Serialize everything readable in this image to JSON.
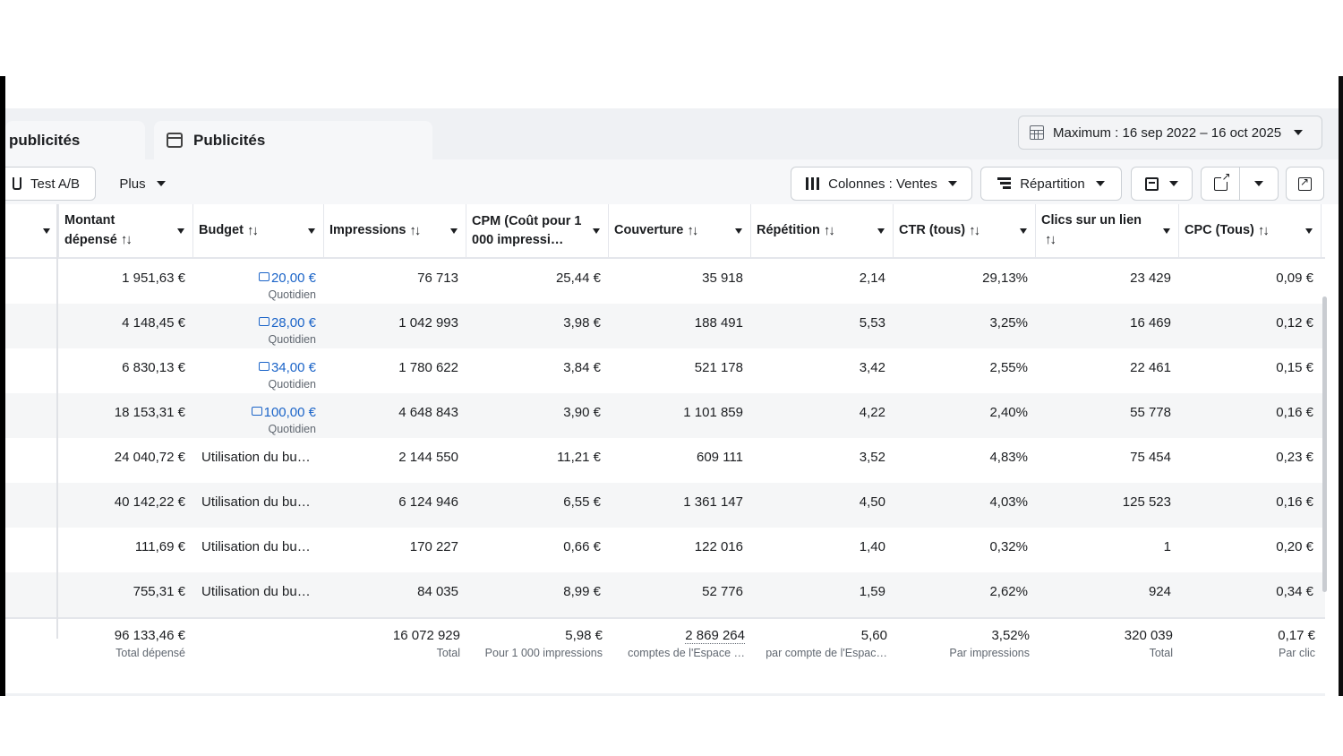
{
  "tabs": {
    "ad_sets_label": "publicités",
    "ads_label": "Publicités"
  },
  "date_range": {
    "label": "Maximum : 16 sep 2022 – 16 oct 2025"
  },
  "toolbar": {
    "ab_test_label": "Test A/B",
    "more_label": "Plus",
    "columns_label": "Colonnes : Ventes",
    "breakdown_label": "Répartition"
  },
  "icons": {
    "tab_ads": "ad-frame-icon",
    "date": "calendar-grid-icon",
    "ab_test": "flask-icon",
    "columns": "columns-icon",
    "breakdown": "breakdown-icon",
    "reports": "reports-icon",
    "export": "export-icon",
    "chart": "chart-icon",
    "budget": "budget-edit-icon"
  },
  "colors": {
    "link": "#1b64c8",
    "alt_row": "#f5f6f7",
    "band": "#eff1f4"
  },
  "headers": {
    "spent": "Montant dépensé",
    "budget": "Budget",
    "impressions": "Impressions",
    "cpm": "CPM (Coût pour 1 000 impressi…",
    "reach": "Couverture",
    "frequency": "Répétition",
    "ctr": "CTR (tous)",
    "link_clicks": "Clics sur un lien",
    "cpc": "CPC (Tous)",
    "sort_glyph": "↑↓"
  },
  "rows": [
    {
      "spent": "1 951,63 €",
      "budget": "20,00 €",
      "budget_sub": "Quotidien",
      "impressions": "76 713",
      "cpm": "25,44 €",
      "reach": "35 918",
      "frequency": "2,14",
      "ctr": "29,13%",
      "clicks": "23 429",
      "cpc": "0,09 €"
    },
    {
      "spent": "4 148,45 €",
      "budget": "28,00 €",
      "budget_sub": "Quotidien",
      "impressions": "1 042 993",
      "cpm": "3,98 €",
      "reach": "188 491",
      "frequency": "5,53",
      "ctr": "3,25%",
      "clicks": "16 469",
      "cpc": "0,12 €"
    },
    {
      "spent": "6 830,13 €",
      "budget": "34,00 €",
      "budget_sub": "Quotidien",
      "impressions": "1 780 622",
      "cpm": "3,84 €",
      "reach": "521 178",
      "frequency": "3,42",
      "ctr": "2,55%",
      "clicks": "22 461",
      "cpc": "0,15 €"
    },
    {
      "spent": "18 153,31 €",
      "budget": "100,00 €",
      "budget_sub": "Quotidien",
      "impressions": "4 648 843",
      "cpm": "3,90 €",
      "reach": "1 101 859",
      "frequency": "4,22",
      "ctr": "2,40%",
      "clicks": "55 778",
      "cpc": "0,16 €"
    },
    {
      "spent": "24 040,72 €",
      "budget_text": "Utilisation du bu…",
      "impressions": "2 144 550",
      "cpm": "11,21 €",
      "reach": "609 111",
      "frequency": "3,52",
      "ctr": "4,83%",
      "clicks": "75 454",
      "cpc": "0,23 €"
    },
    {
      "spent": "40 142,22 €",
      "budget_text": "Utilisation du bu…",
      "impressions": "6 124 946",
      "cpm": "6,55 €",
      "reach": "1 361 147",
      "frequency": "4,50",
      "ctr": "4,03%",
      "clicks": "125 523",
      "cpc": "0,16 €"
    },
    {
      "spent": "111,69 €",
      "budget_text": "Utilisation du bu…",
      "impressions": "170 227",
      "cpm": "0,66 €",
      "reach": "122 016",
      "frequency": "1,40",
      "ctr": "0,32%",
      "clicks": "1",
      "cpc": "0,20 €"
    },
    {
      "spent": "755,31 €",
      "budget_text": "Utilisation du bu…",
      "impressions": "84 035",
      "cpm": "8,99 €",
      "reach": "52 776",
      "frequency": "1,59",
      "ctr": "2,62%",
      "clicks": "924",
      "cpc": "0,34 €"
    }
  ],
  "totals": {
    "spent": "96 133,46 €",
    "spent_sub": "Total dépensé",
    "impressions": "16 072 929",
    "impressions_sub": "Total",
    "cpm": "5,98 €",
    "cpm_sub": "Pour 1 000 impressions",
    "reach": "2 869 264",
    "reach_sub": "comptes de l'Espace …",
    "frequency": "5,60",
    "frequency_sub": "par compte de l'Espac…",
    "ctr": "3,52%",
    "ctr_sub": "Par impressions",
    "clicks": "320 039",
    "clicks_sub": "Total",
    "cpc": "0,17 €",
    "cpc_sub": "Par clic"
  }
}
